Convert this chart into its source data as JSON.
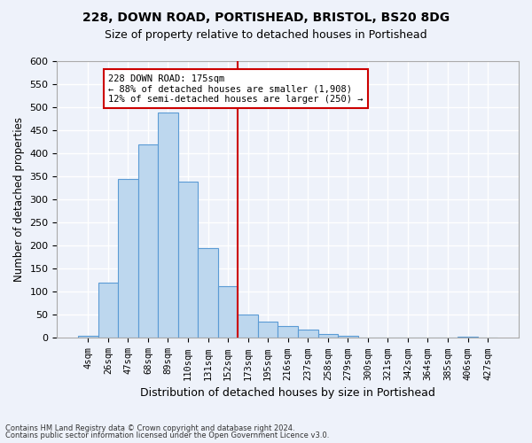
{
  "title": "228, DOWN ROAD, PORTISHEAD, BRISTOL, BS20 8DG",
  "subtitle": "Size of property relative to detached houses in Portishead",
  "xlabel": "Distribution of detached houses by size in Portishead",
  "ylabel": "Number of detached properties",
  "categories": [
    "4sqm",
    "26sqm",
    "47sqm",
    "68sqm",
    "89sqm",
    "110sqm",
    "131sqm",
    "152sqm",
    "173sqm",
    "195sqm",
    "216sqm",
    "237sqm",
    "258sqm",
    "279sqm",
    "300sqm",
    "321sqm",
    "342sqm",
    "364sqm",
    "385sqm",
    "406sqm",
    "427sqm"
  ],
  "values": [
    5,
    120,
    345,
    420,
    488,
    338,
    195,
    113,
    50,
    36,
    25,
    19,
    8,
    5,
    1,
    1,
    0,
    1,
    0,
    2,
    1
  ],
  "bar_color": "#BDD7EE",
  "bar_edge_color": "#5B9BD5",
  "vline_index": 8,
  "vline_color": "#CC0000",
  "annotation_line1": "228 DOWN ROAD: 175sqm",
  "annotation_line2": "← 88% of detached houses are smaller (1,908)",
  "annotation_line3": "12% of semi-detached houses are larger (250) →",
  "annotation_box_color": "#FFFFFF",
  "annotation_box_edge": "#CC0000",
  "footer1": "Contains HM Land Registry data © Crown copyright and database right 2024.",
  "footer2": "Contains public sector information licensed under the Open Government Licence v3.0.",
  "bg_color": "#EEF2FA",
  "grid_color": "#FFFFFF",
  "ylim": [
    0,
    600
  ],
  "yticks": [
    0,
    50,
    100,
    150,
    200,
    250,
    300,
    350,
    400,
    450,
    500,
    550,
    600
  ]
}
